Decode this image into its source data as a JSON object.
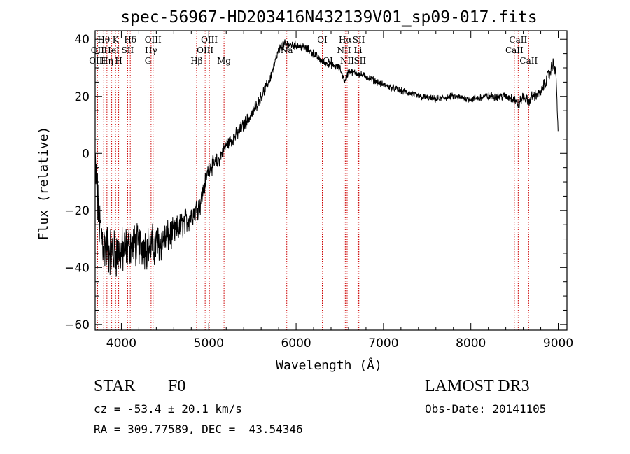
{
  "chart_data": {
    "type": "line",
    "title": "spec-56967-HD203416N432139V01_sp09-017.fits",
    "xlabel": "Wavelength (Å)",
    "ylabel": "Flux (relative)",
    "xlim": [
      3700,
      9100
    ],
    "ylim": [
      -62,
      43
    ],
    "x_ticks": [
      4000,
      5000,
      6000,
      7000,
      8000,
      9000
    ],
    "y_ticks": [
      -60,
      -40,
      -20,
      0,
      20,
      40
    ],
    "spectrum_anchors": {
      "x": [
        3700,
        3750,
        3800,
        3900,
        4000,
        4100,
        4200,
        4300,
        4400,
        4500,
        4600,
        4700,
        4800,
        4900,
        5000,
        5100,
        5200,
        5300,
        5400,
        5500,
        5600,
        5700,
        5750,
        5800,
        5850,
        5900,
        6000,
        6100,
        6200,
        6300,
        6400,
        6500,
        6560,
        6600,
        6700,
        6800,
        7000,
        7200,
        7400,
        7600,
        7800,
        8000,
        8200,
        8400,
        8500,
        8540,
        8600,
        8660,
        8700,
        8800,
        8850,
        8900,
        8950,
        8980,
        9000
      ],
      "y": [
        -5,
        -25,
        -32,
        -35,
        -35,
        -32,
        -32,
        -33,
        -32,
        -30,
        -28,
        -25,
        -22,
        -18,
        -5,
        -3,
        3,
        6,
        10,
        14,
        20,
        26,
        31,
        36,
        38,
        38,
        38,
        37,
        35,
        32,
        31,
        30,
        25,
        29,
        28,
        27,
        24,
        22,
        20,
        19,
        20,
        19,
        20,
        20,
        19,
        17,
        20,
        18,
        20,
        21,
        25,
        28,
        32,
        25,
        5
      ],
      "noise": [
        8,
        8,
        8,
        7,
        7,
        6,
        6,
        6,
        6,
        5,
        4,
        4,
        3.5,
        3,
        2.5,
        2.5,
        2,
        2,
        2,
        1.8,
        1.5,
        1.5,
        1.5,
        1.5,
        1.5,
        1.5,
        1.2,
        1.2,
        1.2,
        1,
        1,
        1,
        1,
        1,
        1,
        1,
        1,
        1,
        1,
        1,
        1,
        1,
        1.2,
        1.2,
        1.5,
        1.5,
        1.5,
        1.5,
        1.5,
        1.5,
        1.8,
        2,
        2,
        2,
        2
      ]
    },
    "lines": [
      {
        "label": "Hθ",
        "x": 3798,
        "row": 0
      },
      {
        "label": "OII",
        "x": 3727,
        "row": 1
      },
      {
        "label": "OIII",
        "x": 3726,
        "row": 2
      },
      {
        "label": "K",
        "x": 3934,
        "row": 0
      },
      {
        "label": "Hδ",
        "x": 4102,
        "row": 0
      },
      {
        "label": "HeI",
        "x": 3889,
        "row": 1
      },
      {
        "label": "SII",
        "x": 4072,
        "row": 1
      },
      {
        "label": "Hη",
        "x": 3835,
        "row": 2
      },
      {
        "label": "H",
        "x": 3969,
        "row": 2
      },
      {
        "label": "OIII",
        "x": 4363,
        "row": 0
      },
      {
        "label": "Hγ",
        "x": 4340,
        "row": 1
      },
      {
        "label": "G",
        "x": 4305,
        "row": 2
      },
      {
        "label": "OIII",
        "x": 5007,
        "row": 0
      },
      {
        "label": "OIII",
        "x": 4959,
        "row": 1
      },
      {
        "label": "Hβ",
        "x": 4861,
        "row": 2
      },
      {
        "label": "Mg",
        "x": 5175,
        "row": 2
      },
      {
        "label": "Na",
        "x": 5893,
        "row": 1
      },
      {
        "label": "OI",
        "x": 6300,
        "row": 0
      },
      {
        "label": "OI",
        "x": 6364,
        "row": 2
      },
      {
        "label": "Hα",
        "x": 6563,
        "row": 0
      },
      {
        "label": "SII",
        "x": 6717,
        "row": 0
      },
      {
        "label": "NII",
        "x": 6548,
        "row": 1
      },
      {
        "label": "Li",
        "x": 6708,
        "row": 1
      },
      {
        "label": "NII",
        "x": 6584,
        "row": 2
      },
      {
        "label": "SII",
        "x": 6731,
        "row": 2
      },
      {
        "label": "CaII",
        "x": 8542,
        "row": 0
      },
      {
        "label": "CaII",
        "x": 8498,
        "row": 1
      },
      {
        "label": "CaII",
        "x": 8662,
        "row": 2
      }
    ],
    "line_color": "#cc0000"
  },
  "info": {
    "class": "STAR",
    "subclass": "F0",
    "cz": "cz = -53.4 ± 20.1 km/s",
    "radec": "RA = 309.77589, DEC =  43.54346",
    "survey": "LAMOST DR3",
    "obsdate": "Obs-Date: 20141105"
  }
}
